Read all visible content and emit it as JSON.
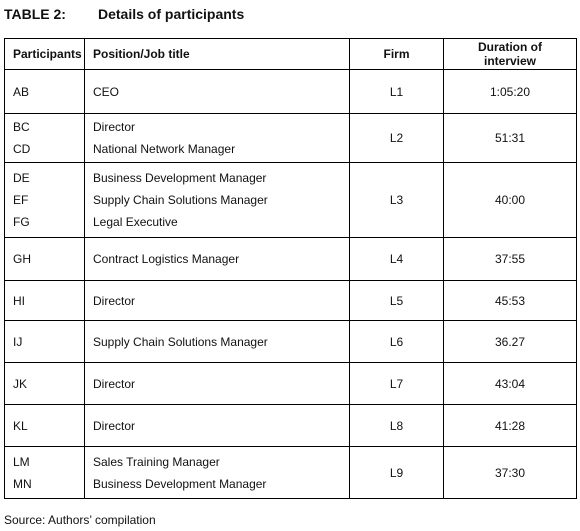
{
  "title": {
    "label": "TABLE 2:",
    "text": "Details of participants"
  },
  "table": {
    "columns": [
      "Participants",
      "Position/Job title",
      "Firm",
      "Duration of interview"
    ],
    "rows": [
      {
        "participants": [
          "AB"
        ],
        "positions": [
          "CEO"
        ],
        "firm": "L1",
        "duration": "1:05:20"
      },
      {
        "participants": [
          "BC",
          "CD"
        ],
        "positions": [
          "Director",
          "National Network Manager"
        ],
        "firm": "L2",
        "duration": "51:31"
      },
      {
        "participants": [
          "DE",
          "EF",
          "FG"
        ],
        "positions": [
          "Business Development Manager",
          "Supply Chain Solutions Manager",
          "Legal Executive"
        ],
        "firm": "L3",
        "duration": "40:00"
      },
      {
        "participants": [
          "GH"
        ],
        "positions": [
          "Contract Logistics Manager"
        ],
        "firm": "L4",
        "duration": "37:55"
      },
      {
        "participants": [
          "HI"
        ],
        "positions": [
          "Director"
        ],
        "firm": "L5",
        "duration": "45:53"
      },
      {
        "participants": [
          "IJ"
        ],
        "positions": [
          "Supply Chain Solutions Manager"
        ],
        "firm": "L6",
        "duration": "36.27"
      },
      {
        "participants": [
          "JK"
        ],
        "positions": [
          "Director"
        ],
        "firm": "L7",
        "duration": "43:04"
      },
      {
        "participants": [
          "KL"
        ],
        "positions": [
          "Director"
        ],
        "firm": "L8",
        "duration": "41:28"
      },
      {
        "participants": [
          "LM",
          "MN"
        ],
        "positions": [
          "Sales Training Manager",
          "Business Development Manager"
        ],
        "firm": "L9",
        "duration": "37:30"
      }
    ]
  },
  "source": "Source: Authors’ compilation"
}
